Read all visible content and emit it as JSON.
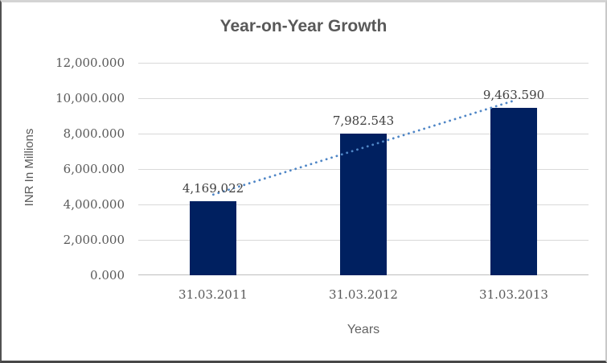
{
  "chart_data": {
    "type": "bar",
    "title": "Year-on-Year Growth",
    "xlabel": "Years",
    "ylabel": "INR In Millions",
    "categories": [
      "31.03.2011",
      "31.03.2012",
      "31.03.2013"
    ],
    "values": [
      4169.022,
      7982.543,
      9463.59
    ],
    "data_labels": [
      "4,169.022",
      "7,982.543",
      "9,463.590"
    ],
    "ylim": [
      0,
      12000
    ],
    "ytick_values": [
      0,
      2000,
      4000,
      6000,
      8000,
      10000,
      12000
    ],
    "ytick_labels": [
      "0.000",
      "2,000.000",
      "4,000.000",
      "6,000.000",
      "8,000.000",
      "10,000.000",
      "12,000.000"
    ],
    "grid": true,
    "legend": false,
    "trendline": {
      "type": "linear",
      "style": "dotted"
    },
    "colors": {
      "bar_fill": "#002060",
      "trendline": "#4f86c6",
      "gridline": "#d9d9d9",
      "axis_line": "#bfbfbf",
      "title_text": "#595959",
      "tick_text": "#595959",
      "data_label_text": "#404040",
      "axis_title_text": "#636363"
    }
  }
}
